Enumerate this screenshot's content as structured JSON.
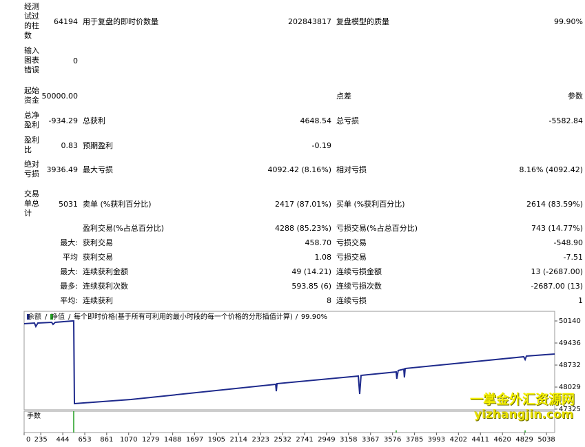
{
  "report": {
    "rows": [
      {
        "label": "经测试过的柱数",
        "value": "64194",
        "k2": "用于复盘的即时价数量",
        "v2": "202843817",
        "k3": "复盘模型的质量",
        "v3": "99.90%"
      },
      {
        "label": "输入图表错误",
        "value": "0"
      },
      {
        "label": "起始资金",
        "value": "50000.00",
        "k3": "点差",
        "v3": "参数"
      },
      {
        "label": "总净盈利",
        "value": "-934.29",
        "k2": "总获利",
        "v2": "4648.54",
        "k3": "总亏损",
        "v3": "-5582.84"
      },
      {
        "label": "盈利比",
        "value": "0.83",
        "k2": "预期盈利",
        "v2": "-0.19"
      },
      {
        "label": "绝对亏损",
        "value": "3936.49",
        "k2": "最大亏损",
        "v2": "4092.42 (8.16%)",
        "k3": "相对亏损",
        "v3": "8.16% (4092.42)"
      },
      {
        "label": "交易单总计",
        "value": "5031",
        "k2": "卖单 (%获利百分比)",
        "v2": "2417 (87.01%)",
        "k3": "买单 (%获利百分比)",
        "v3": "2614 (83.59%)"
      },
      {
        "k2": "盈利交易(%占总百分比)",
        "v2": "4288 (85.23%)",
        "k3": "亏损交易(%占总百分比)",
        "v3": "743 (14.77%)"
      },
      {
        "value": "最大:",
        "k2": "获利交易",
        "v2": "458.70",
        "k3": "亏损交易",
        "v3": "-548.90"
      },
      {
        "value": "平均",
        "k2": "获利交易",
        "v2": "1.08",
        "k3": "亏损交易",
        "v3": "-7.51"
      },
      {
        "value": "最大:",
        "k2": "连续获利金额",
        "v2": "49 (14.21)",
        "k3": "连续亏损金额",
        "v3": "13 (-2687.00)"
      },
      {
        "value": "最多:",
        "k2": "连续获利次数",
        "v2": "593.85 (6)",
        "k3": "连续亏损次数",
        "v3": "-2687.00 (13)"
      },
      {
        "value": "平均:",
        "k2": "连续获利",
        "v2": "8",
        "k3": "连续亏损",
        "v3": "1"
      }
    ]
  },
  "chart": {
    "type": "line",
    "legend": [
      {
        "name": "余额",
        "color": "#1e2a8c"
      },
      {
        "name": "净值",
        "color": "#22a022"
      }
    ],
    "separator": "/",
    "caption": "每个即时价格(基于所有可利用的最小时段的每一个价格的分形插值计算)",
    "quality": "99.90%",
    "xlim": [
      77,
      5116
    ],
    "ylim": [
      47303,
      50448
    ],
    "xticks": [
      0,
      235,
      444,
      653,
      861,
      1070,
      1279,
      1488,
      1697,
      1905,
      2114,
      2323,
      2532,
      2741,
      2949,
      3158,
      3367,
      3576,
      3785,
      3993,
      4202,
      4411,
      4620,
      4829,
      5038
    ],
    "yticks": [
      50140,
      49436,
      48732,
      48029,
      47325
    ],
    "series": [
      {
        "name": "余额",
        "color": "#1e2a8c",
        "x": [
          77,
          175,
          188,
          208,
          339,
          352,
          372,
          535,
          548,
          555,
          1092,
          2466,
          2472,
          2479,
          3251,
          3264,
          3277,
          3611,
          3617,
          3630,
          3683,
          3689,
          3696,
          4822,
          4835,
          4848,
          5116
        ],
        "values": [
          50052,
          50074,
          49964,
          50074,
          50096,
          50030,
          50096,
          50140,
          50140,
          47500,
          47632,
          48116,
          47896,
          48138,
          48380,
          47808,
          48402,
          48512,
          48292,
          48556,
          48600,
          48336,
          48622,
          48996,
          48908,
          49018,
          49084
        ]
      }
    ],
    "volume": {
      "name": "手数",
      "color": "#22a022",
      "x": [
        548,
        3611,
        4835
      ],
      "values": [
        1,
        0.1,
        0.1
      ],
      "ylim": [
        0,
        1
      ]
    }
  },
  "watermark": {
    "cn": "一掌金外汇资源网",
    "en": "yizhangjin.com"
  }
}
